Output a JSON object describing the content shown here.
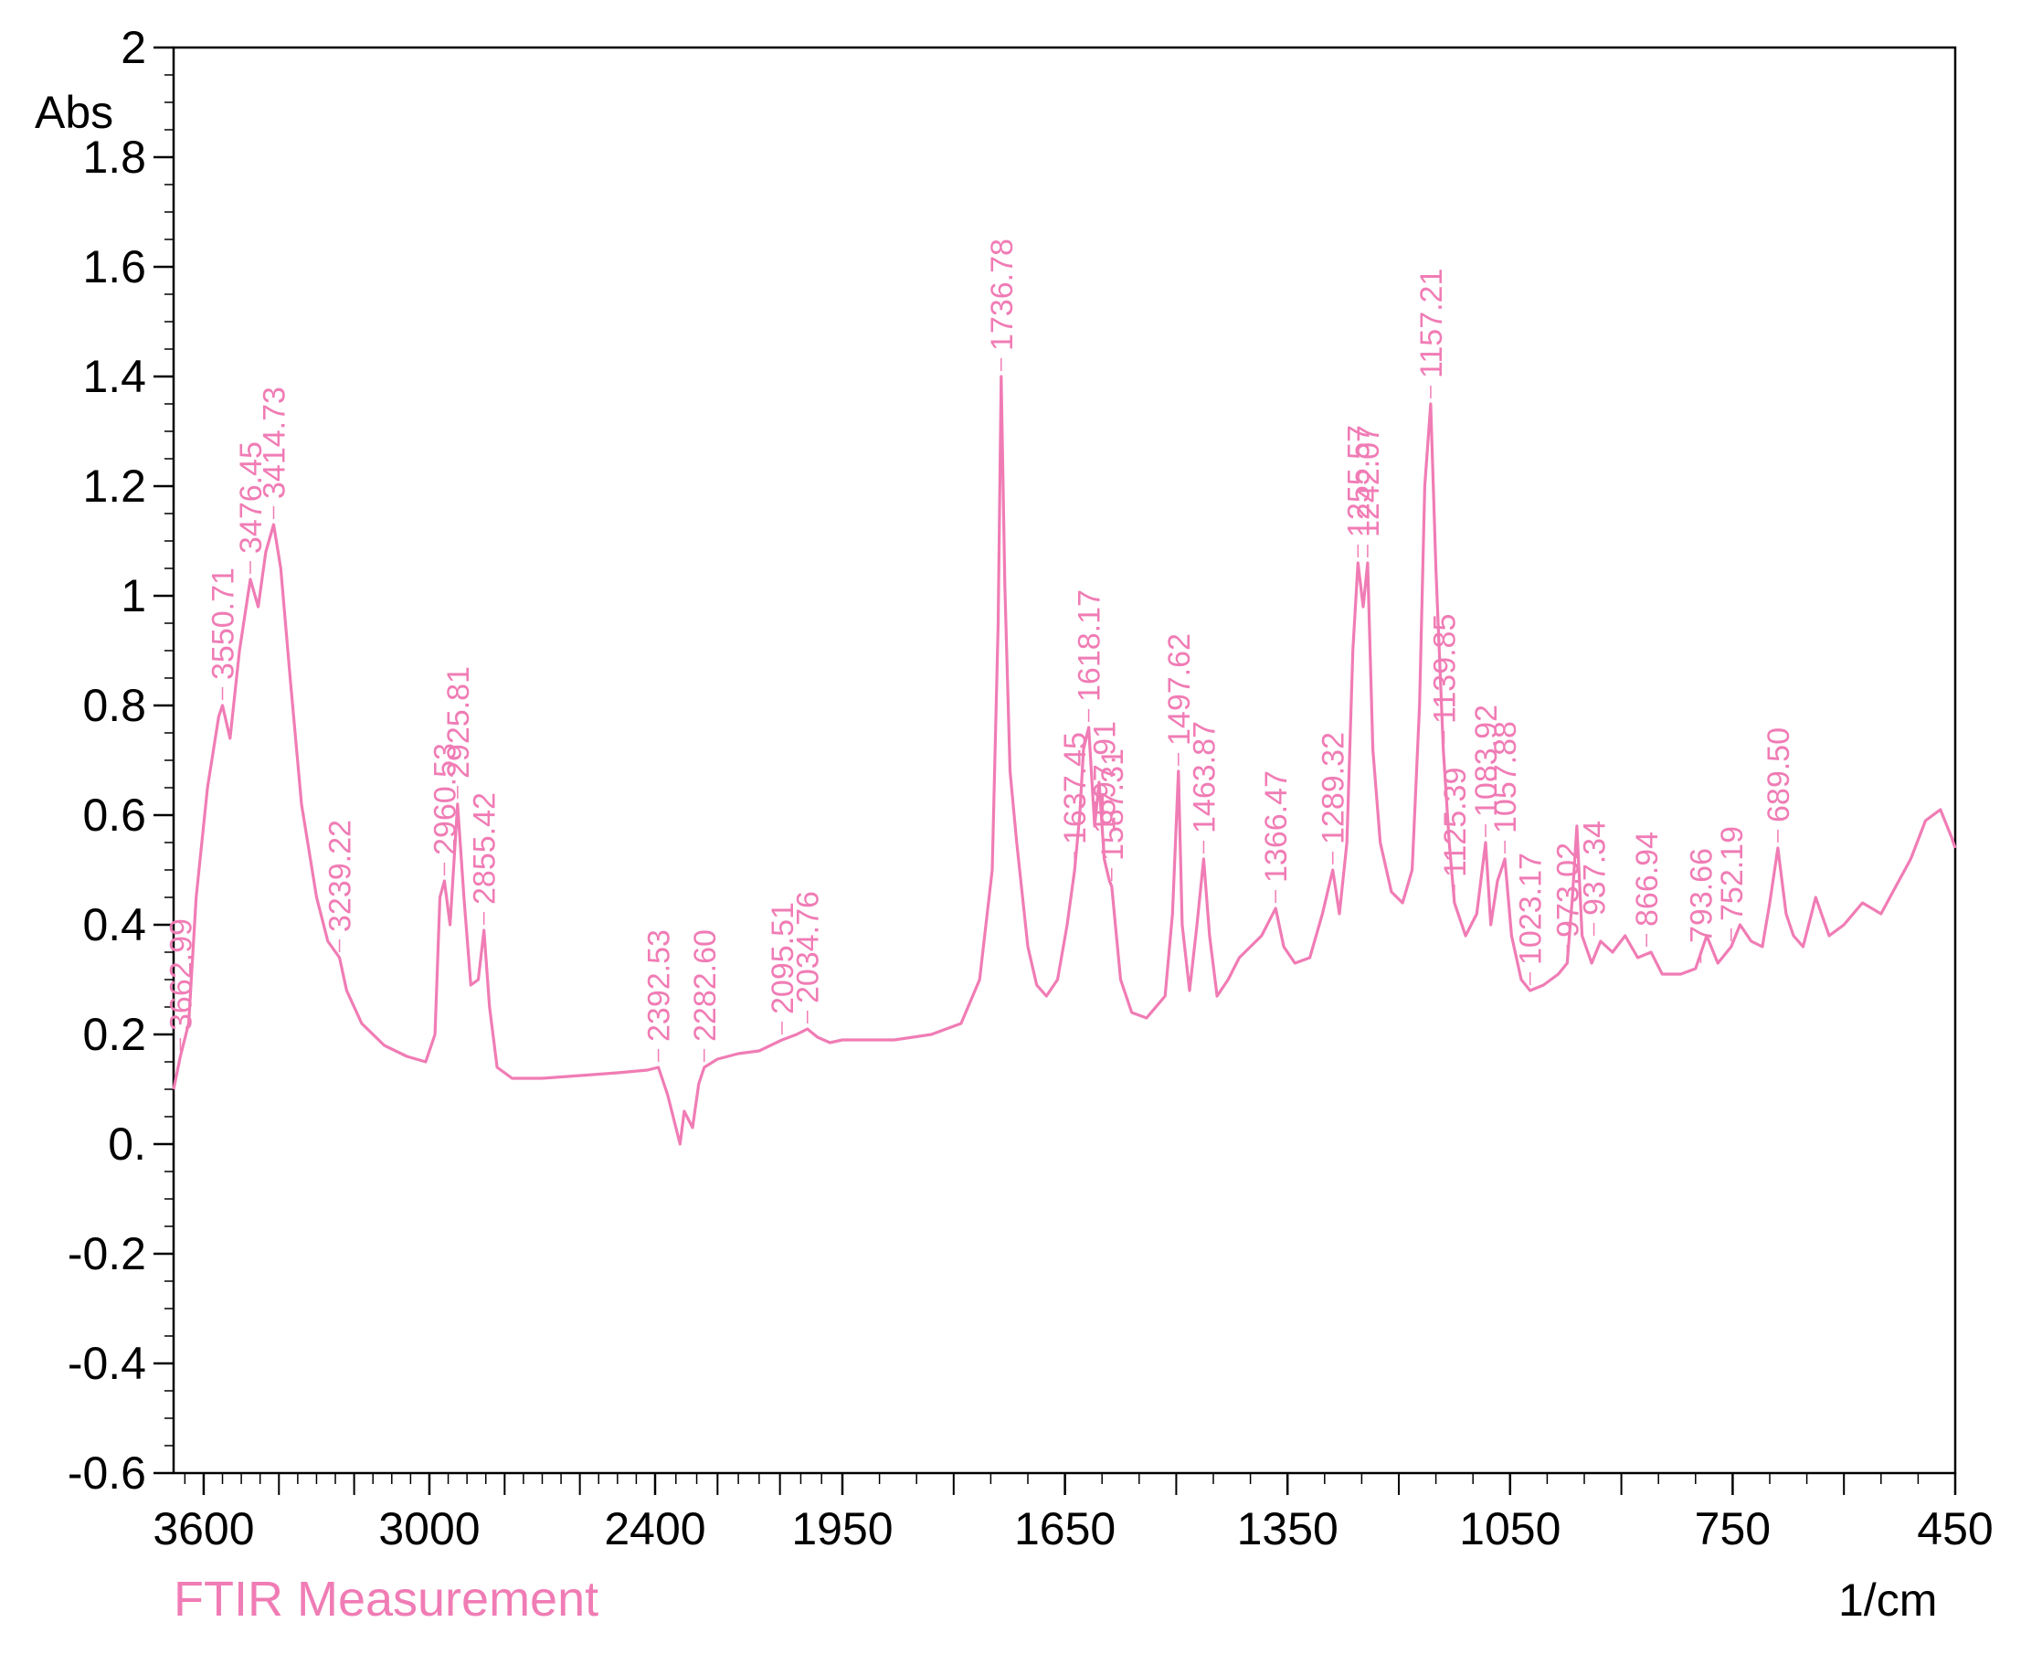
{
  "chart_data": {
    "type": "line",
    "xlabel": "1/cm",
    "ylabel": "Abs",
    "x_axis_reversed": true,
    "xlim": [
      3680,
      450
    ],
    "ylim": [
      -0.6,
      2.0
    ],
    "y_ticks": [
      "2",
      "1.8",
      "1.6",
      "1.4",
      "1.2",
      "1",
      "0.8",
      "0.6",
      "0.4",
      "0.2",
      "0.",
      "-0.2",
      "-0.4",
      "-0.6"
    ],
    "x_ticks": [
      "3600",
      "3000",
      "2400",
      "1950",
      "1650",
      "1350",
      "1050",
      "750",
      "450"
    ],
    "x_axis_segments": [
      {
        "from": 3680,
        "to": 2400,
        "label_ticks": [
          3600,
          3000,
          2400
        ]
      },
      {
        "from": 2400,
        "to": 1950,
        "label_ticks": [
          2400,
          1950
        ]
      },
      {
        "from": 1950,
        "to": 450,
        "label_ticks": [
          1950,
          1650,
          1350,
          1050,
          750,
          450
        ]
      }
    ],
    "grid": false,
    "series": [
      {
        "color": "#f07cb5",
        "points": [
          [
            3680,
            0.1
          ],
          [
            3662,
            0.16
          ],
          [
            3640,
            0.22
          ],
          [
            3620,
            0.45
          ],
          [
            3590,
            0.65
          ],
          [
            3560,
            0.78
          ],
          [
            3550,
            0.8
          ],
          [
            3530,
            0.74
          ],
          [
            3505,
            0.9
          ],
          [
            3476,
            1.03
          ],
          [
            3455,
            0.98
          ],
          [
            3435,
            1.08
          ],
          [
            3414,
            1.13
          ],
          [
            3395,
            1.05
          ],
          [
            3370,
            0.85
          ],
          [
            3340,
            0.62
          ],
          [
            3300,
            0.45
          ],
          [
            3270,
            0.37
          ],
          [
            3239,
            0.34
          ],
          [
            3220,
            0.28
          ],
          [
            3180,
            0.22
          ],
          [
            3120,
            0.18
          ],
          [
            3060,
            0.16
          ],
          [
            3010,
            0.15
          ],
          [
            2985,
            0.2
          ],
          [
            2972,
            0.45
          ],
          [
            2960,
            0.48
          ],
          [
            2945,
            0.4
          ],
          [
            2925,
            0.62
          ],
          [
            2908,
            0.45
          ],
          [
            2890,
            0.29
          ],
          [
            2870,
            0.3
          ],
          [
            2855,
            0.39
          ],
          [
            2840,
            0.25
          ],
          [
            2820,
            0.14
          ],
          [
            2780,
            0.12
          ],
          [
            2700,
            0.12
          ],
          [
            2600,
            0.125
          ],
          [
            2500,
            0.13
          ],
          [
            2420,
            0.135
          ],
          [
            2392,
            0.14
          ],
          [
            2370,
            0.09
          ],
          [
            2340,
            0.0
          ],
          [
            2330,
            0.06
          ],
          [
            2310,
            0.03
          ],
          [
            2295,
            0.11
          ],
          [
            2282,
            0.14
          ],
          [
            2250,
            0.155
          ],
          [
            2200,
            0.165
          ],
          [
            2150,
            0.17
          ],
          [
            2095,
            0.19
          ],
          [
            2060,
            0.2
          ],
          [
            2034,
            0.21
          ],
          [
            2010,
            0.195
          ],
          [
            1980,
            0.185
          ],
          [
            1950,
            0.19
          ],
          [
            1880,
            0.19
          ],
          [
            1830,
            0.2
          ],
          [
            1790,
            0.22
          ],
          [
            1765,
            0.3
          ],
          [
            1748,
            0.5
          ],
          [
            1740,
            0.95
          ],
          [
            1736,
            1.4
          ],
          [
            1731,
            1.02
          ],
          [
            1724,
            0.68
          ],
          [
            1715,
            0.55
          ],
          [
            1700,
            0.36
          ],
          [
            1688,
            0.29
          ],
          [
            1675,
            0.27
          ],
          [
            1660,
            0.3
          ],
          [
            1647,
            0.4
          ],
          [
            1637,
            0.5
          ],
          [
            1630,
            0.6
          ],
          [
            1625,
            0.72
          ],
          [
            1618,
            0.76
          ],
          [
            1610,
            0.58
          ],
          [
            1604,
            0.66
          ],
          [
            1597,
            0.52
          ],
          [
            1590,
            0.48
          ],
          [
            1587,
            0.47
          ],
          [
            1575,
            0.3
          ],
          [
            1560,
            0.24
          ],
          [
            1540,
            0.23
          ],
          [
            1515,
            0.27
          ],
          [
            1505,
            0.42
          ],
          [
            1497,
            0.68
          ],
          [
            1492,
            0.4
          ],
          [
            1482,
            0.28
          ],
          [
            1472,
            0.4
          ],
          [
            1463,
            0.52
          ],
          [
            1455,
            0.38
          ],
          [
            1445,
            0.27
          ],
          [
            1430,
            0.3
          ],
          [
            1415,
            0.34
          ],
          [
            1400,
            0.36
          ],
          [
            1385,
            0.38
          ],
          [
            1366,
            0.43
          ],
          [
            1355,
            0.36
          ],
          [
            1340,
            0.33
          ],
          [
            1320,
            0.34
          ],
          [
            1303,
            0.42
          ],
          [
            1289,
            0.5
          ],
          [
            1280,
            0.42
          ],
          [
            1270,
            0.55
          ],
          [
            1262,
            0.9
          ],
          [
            1255,
            1.06
          ],
          [
            1248,
            0.98
          ],
          [
            1242,
            1.06
          ],
          [
            1235,
            0.72
          ],
          [
            1225,
            0.55
          ],
          [
            1210,
            0.46
          ],
          [
            1195,
            0.44
          ],
          [
            1182,
            0.5
          ],
          [
            1172,
            0.8
          ],
          [
            1165,
            1.2
          ],
          [
            1157,
            1.35
          ],
          [
            1150,
            1.05
          ],
          [
            1140,
            0.72
          ],
          [
            1132,
            0.55
          ],
          [
            1125,
            0.44
          ],
          [
            1110,
            0.38
          ],
          [
            1095,
            0.42
          ],
          [
            1083,
            0.55
          ],
          [
            1076,
            0.4
          ],
          [
            1067,
            0.48
          ],
          [
            1057,
            0.52
          ],
          [
            1048,
            0.38
          ],
          [
            1035,
            0.3
          ],
          [
            1023,
            0.28
          ],
          [
            1005,
            0.29
          ],
          [
            985,
            0.31
          ],
          [
            973,
            0.33
          ],
          [
            966,
            0.45
          ],
          [
            960,
            0.58
          ],
          [
            953,
            0.38
          ],
          [
            940,
            0.33
          ],
          [
            928,
            0.37
          ],
          [
            912,
            0.35
          ],
          [
            895,
            0.38
          ],
          [
            878,
            0.34
          ],
          [
            860,
            0.35
          ],
          [
            845,
            0.31
          ],
          [
            820,
            0.31
          ],
          [
            800,
            0.32
          ],
          [
            785,
            0.38
          ],
          [
            770,
            0.33
          ],
          [
            752,
            0.36
          ],
          [
            740,
            0.4
          ],
          [
            725,
            0.37
          ],
          [
            710,
            0.36
          ],
          [
            700,
            0.44
          ],
          [
            689,
            0.54
          ],
          [
            678,
            0.42
          ],
          [
            668,
            0.38
          ],
          [
            655,
            0.36
          ],
          [
            638,
            0.45
          ],
          [
            620,
            0.38
          ],
          [
            600,
            0.4
          ],
          [
            575,
            0.44
          ],
          [
            550,
            0.42
          ],
          [
            530,
            0.47
          ],
          [
            510,
            0.52
          ],
          [
            490,
            0.59
          ],
          [
            470,
            0.61
          ],
          [
            455,
            0.56
          ],
          [
            450,
            0.54
          ]
        ]
      }
    ],
    "peak_labels": [
      {
        "text": "3662.99",
        "x": 3662,
        "y": 0.16
      },
      {
        "text": "3550.71",
        "x": 3550,
        "y": 0.8
      },
      {
        "text": "3476.45",
        "x": 3476,
        "y": 1.03
      },
      {
        "text": "3414.73",
        "x": 3414,
        "y": 1.13
      },
      {
        "text": "3239.22",
        "x": 3239,
        "y": 0.34
      },
      {
        "text": "2960.53",
        "x": 2960,
        "y": 0.48
      },
      {
        "text": "2925.81",
        "x": 2925,
        "y": 0.62
      },
      {
        "text": "2855.42",
        "x": 2855,
        "y": 0.39
      },
      {
        "text": "2392.53",
        "x": 2392,
        "y": 0.14
      },
      {
        "text": "2282.60",
        "x": 2282,
        "y": 0.14
      },
      {
        "text": "2095.51",
        "x": 2095,
        "y": 0.19
      },
      {
        "text": "2034.76",
        "x": 2034,
        "y": 0.21
      },
      {
        "text": "1736.78",
        "x": 1736,
        "y": 1.4
      },
      {
        "text": "1637.45",
        "x": 1637,
        "y": 0.5
      },
      {
        "text": "1618.17",
        "x": 1618,
        "y": 0.76
      },
      {
        "text": "1597.91",
        "x": 1597,
        "y": 0.52
      },
      {
        "text": "1587.31",
        "x": 1587,
        "y": 0.47
      },
      {
        "text": "1497.62",
        "x": 1497,
        "y": 0.68
      },
      {
        "text": "1463.87",
        "x": 1463,
        "y": 0.52
      },
      {
        "text": "1366.47",
        "x": 1366,
        "y": 0.43
      },
      {
        "text": "1289.32",
        "x": 1289,
        "y": 0.5
      },
      {
        "text": "1255.57",
        "x": 1255,
        "y": 1.06
      },
      {
        "text": "1242.07",
        "x": 1242,
        "y": 1.06
      },
      {
        "text": "1157.21",
        "x": 1157,
        "y": 1.35
      },
      {
        "text": "1139.85",
        "x": 1139,
        "y": 0.72
      },
      {
        "text": "1125.39",
        "x": 1125,
        "y": 0.44
      },
      {
        "text": "1083.92",
        "x": 1083,
        "y": 0.55
      },
      {
        "text": "1057.88",
        "x": 1057,
        "y": 0.52
      },
      {
        "text": "1023.17",
        "x": 1023,
        "y": 0.28
      },
      {
        "text": "973.02",
        "x": 973,
        "y": 0.33
      },
      {
        "text": "937.34",
        "x": 937,
        "y": 0.37
      },
      {
        "text": "866.94",
        "x": 866,
        "y": 0.35
      },
      {
        "text": "793.66",
        "x": 793,
        "y": 0.32
      },
      {
        "text": "752.19",
        "x": 752,
        "y": 0.36
      },
      {
        "text": "689.50",
        "x": 689,
        "y": 0.54
      }
    ]
  },
  "footer": {
    "measurement_label": "FTIR Measurement",
    "unit_label": "1/cm",
    "abs_label": "Abs"
  },
  "colors": {
    "spectrum": "#f07cb5",
    "label": "#f07cb5",
    "axis": "#000000"
  }
}
